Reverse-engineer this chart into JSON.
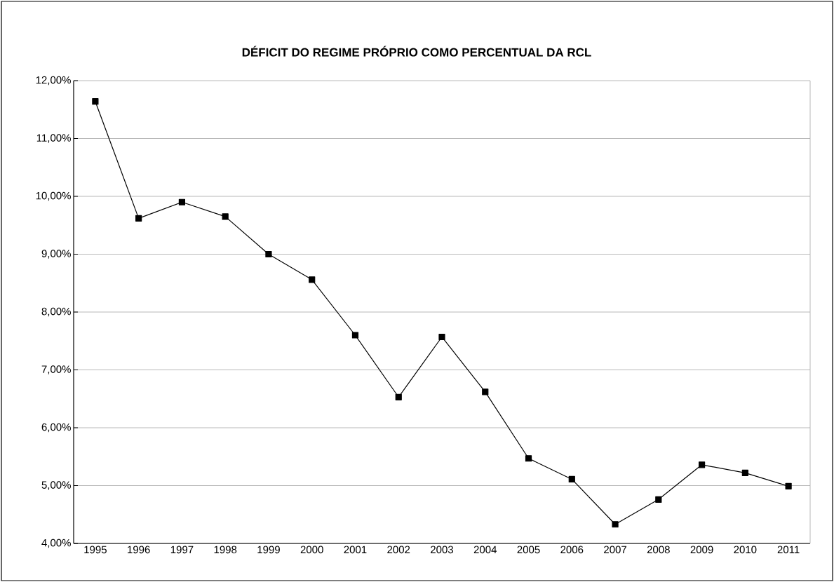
{
  "chart_data": {
    "type": "line",
    "title": "DÉFICIT DO REGIME PRÓPRIO COMO PERCENTUAL DA RCL",
    "categories": [
      "1995",
      "1996",
      "1997",
      "1998",
      "1999",
      "2000",
      "2001",
      "2002",
      "2003",
      "2004",
      "2005",
      "2006",
      "2007",
      "2008",
      "2009",
      "2010",
      "2011"
    ],
    "series": [
      {
        "color": "#000000",
        "values": [
          11.64,
          9.62,
          9.9,
          9.65,
          9.0,
          8.56,
          7.6,
          6.53,
          7.57,
          6.62,
          5.47,
          5.11,
          4.33,
          4.76,
          5.36,
          5.22,
          4.99
        ]
      }
    ],
    "ylim": [
      4,
      12
    ],
    "yticks": [
      {
        "value": 4,
        "label": "4,00%"
      },
      {
        "value": 5,
        "label": "5,00%"
      },
      {
        "value": 6,
        "label": "6,00%"
      },
      {
        "value": 7,
        "label": "7,00%"
      },
      {
        "value": 8,
        "label": "8,00%"
      },
      {
        "value": 9,
        "label": "9,00%"
      },
      {
        "value": 10,
        "label": "10,00%"
      },
      {
        "value": 11,
        "label": "11,00%"
      },
      {
        "value": 12,
        "label": "12,00%"
      }
    ],
    "grid": "y",
    "marker": "square",
    "line_style": "solid"
  }
}
